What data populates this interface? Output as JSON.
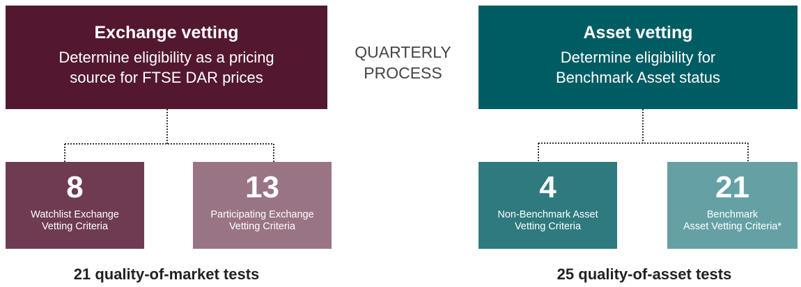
{
  "groups": [
    {
      "title": "Exchange vetting",
      "description": [
        "Determine eligibility as a pricing",
        "source for FTSE DAR prices"
      ],
      "criteria": [
        {
          "count": 8,
          "label": [
            "Watchlist Exchange",
            "Vetting Criteria"
          ]
        },
        {
          "count": 13,
          "label": [
            "Participating Exchange",
            "Vetting Criteria"
          ]
        }
      ],
      "total": "21 quality-of-market tests"
    },
    {
      "title": "Asset vetting",
      "description": [
        "Determine eligibility for",
        "Benchmark Asset status"
      ],
      "criteria": [
        {
          "count": 4,
          "label": [
            "Non-Benchmark Asset",
            "Vetting Criteria"
          ]
        },
        {
          "count": 21,
          "label": [
            "Benchmark",
            "Asset Vetting Criteria*"
          ]
        }
      ],
      "total": "25 quality-of-asset tests"
    }
  ],
  "center": [
    "QUARTERLY",
    "PROCESS"
  ]
}
